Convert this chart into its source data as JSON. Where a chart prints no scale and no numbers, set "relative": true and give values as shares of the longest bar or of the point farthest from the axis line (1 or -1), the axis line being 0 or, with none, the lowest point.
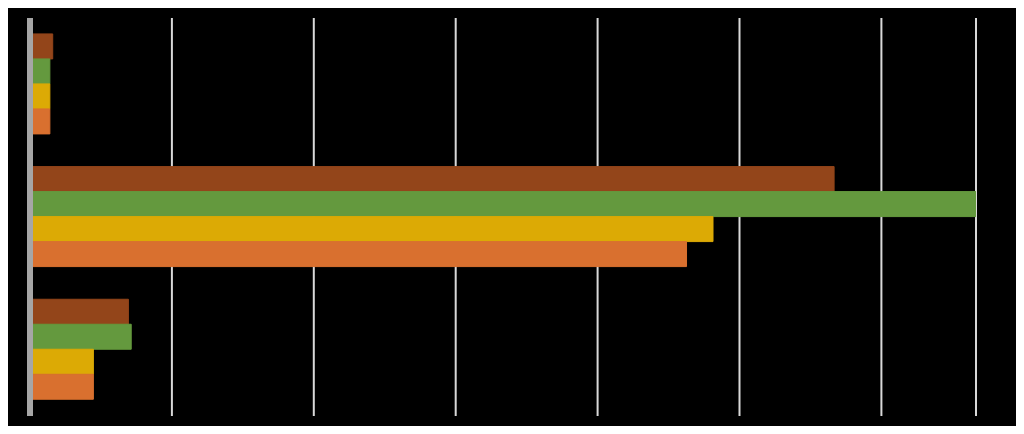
{
  "chart_data": {
    "type": "bar",
    "orientation": "horizontal",
    "relative": true,
    "grid": "x",
    "categories": [
      null,
      null,
      null
    ],
    "series": [
      {
        "color": "#93451a",
        "values": [
          0.024,
          0.85,
          0.104
        ]
      },
      {
        "color": "#64993e",
        "values": [
          0.021,
          1,
          0.107
        ]
      },
      {
        "color": "#dcaa05",
        "values": [
          0.021,
          0.722,
          0.067
        ]
      },
      {
        "color": "#d9702f",
        "values": [
          0.021,
          0.694,
          0.067
        ]
      }
    ]
  }
}
